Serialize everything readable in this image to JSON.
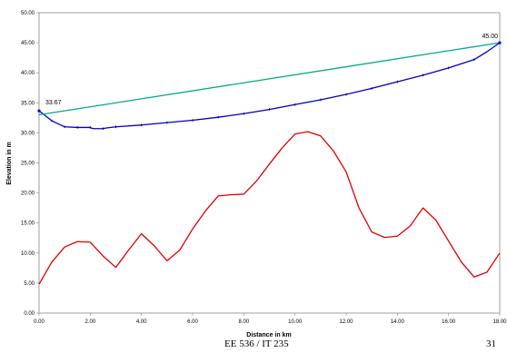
{
  "chart_data": {
    "type": "line",
    "title": "",
    "xlabel": "Distance in km",
    "ylabel": "Elevation in m",
    "xlim": [
      0,
      18
    ],
    "ylim": [
      0,
      50
    ],
    "x_ticks": [
      "0.00",
      "2.00",
      "4.00",
      "6.00",
      "8.00",
      "10.00",
      "12.00",
      "14.00",
      "16.00",
      "18.00"
    ],
    "y_ticks": [
      "0.00",
      "5.00",
      "10.00",
      "15.00",
      "20.00",
      "25.00",
      "30.00",
      "35.00",
      "40.00",
      "45.00",
      "50.00"
    ],
    "grid": false,
    "legend": "none",
    "series": [
      {
        "color": "#e00000",
        "points": [
          [
            0,
            4.8
          ],
          [
            0.5,
            8.5
          ],
          [
            1,
            11.0
          ],
          [
            1.5,
            11.9
          ],
          [
            2,
            11.8
          ],
          [
            2.5,
            9.5
          ],
          [
            3,
            7.6
          ],
          [
            3.5,
            10.5
          ],
          [
            4,
            13.2
          ],
          [
            4.5,
            11.2
          ],
          [
            5,
            8.7
          ],
          [
            5.5,
            10.5
          ],
          [
            6,
            14.0
          ],
          [
            6.5,
            17.0
          ],
          [
            7,
            19.5
          ],
          [
            7.5,
            19.7
          ],
          [
            8,
            19.8
          ],
          [
            8.5,
            22.0
          ],
          [
            9,
            24.8
          ],
          [
            9.5,
            27.5
          ],
          [
            10,
            29.8
          ],
          [
            10.5,
            30.2
          ],
          [
            11,
            29.5
          ],
          [
            11.5,
            27.0
          ],
          [
            12,
            23.5
          ],
          [
            12.5,
            17.5
          ],
          [
            13,
            13.5
          ],
          [
            13.5,
            12.6
          ],
          [
            14,
            12.8
          ],
          [
            14.5,
            14.5
          ],
          [
            15,
            17.5
          ],
          [
            15.5,
            15.5
          ],
          [
            16,
            12.0
          ],
          [
            16.5,
            8.5
          ],
          [
            17,
            6.0
          ],
          [
            17.5,
            6.8
          ],
          [
            18,
            10.0
          ]
        ]
      },
      {
        "color": "#0000c0",
        "points": [
          [
            0,
            33.67
          ],
          [
            0.5,
            32.0
          ],
          [
            1,
            31.0
          ],
          [
            1.5,
            30.9
          ],
          [
            2,
            30.9
          ],
          [
            2.1,
            30.7
          ],
          [
            2.5,
            30.7
          ],
          [
            2.6,
            30.8
          ],
          [
            3,
            31.0
          ],
          [
            4,
            31.3
          ],
          [
            5,
            31.7
          ],
          [
            6,
            32.1
          ],
          [
            7,
            32.6
          ],
          [
            8,
            33.2
          ],
          [
            9,
            33.9
          ],
          [
            10,
            34.7
          ],
          [
            11,
            35.5
          ],
          [
            12,
            36.4
          ],
          [
            13,
            37.4
          ],
          [
            14,
            38.5
          ],
          [
            15,
            39.6
          ],
          [
            16,
            40.8
          ],
          [
            16.5,
            41.5
          ],
          [
            17,
            42.2
          ],
          [
            17.5,
            43.5
          ],
          [
            18,
            45.0
          ]
        ],
        "markers": [
          0.5,
          1,
          1.5,
          2,
          2.5,
          3,
          4,
          5,
          6,
          7,
          8,
          9,
          10,
          11,
          12,
          13,
          14,
          15,
          16,
          17,
          18
        ]
      },
      {
        "color": "#00aa88",
        "points": [
          [
            0,
            33.0
          ],
          [
            18,
            45.0
          ]
        ]
      }
    ],
    "annotations": [
      {
        "text": "33.67",
        "x": 0,
        "y": 33.67
      },
      {
        "text": "45.00",
        "x": 18,
        "y": 45.0
      }
    ]
  },
  "footer": {
    "course": "EE 536 / IT 235",
    "page": "31"
  }
}
